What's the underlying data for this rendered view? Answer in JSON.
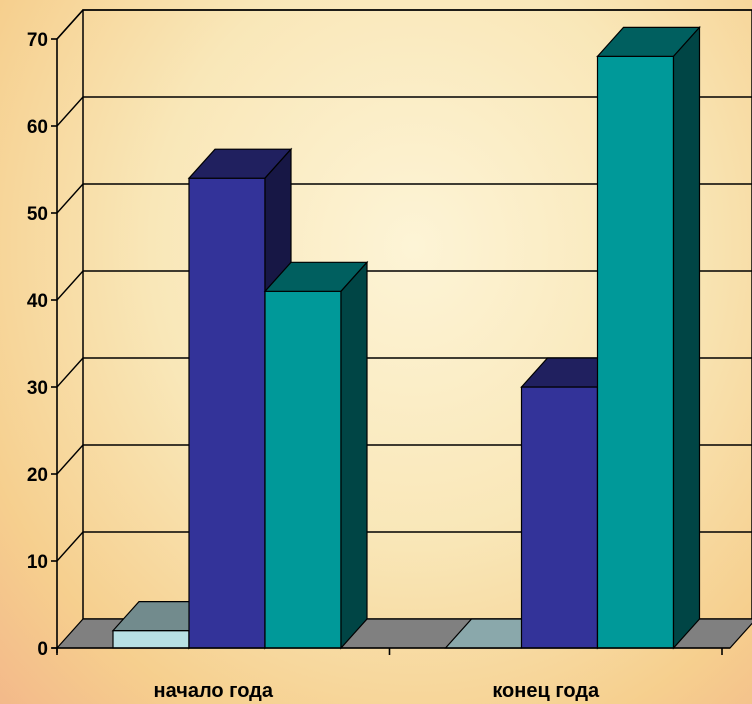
{
  "chart_data": {
    "type": "bar",
    "style": "3d-clustered-column",
    "categories": [
      "начало года",
      "конец года"
    ],
    "series": [
      {
        "values": [
          2,
          0
        ],
        "color": "#b8e0e4"
      },
      {
        "values": [
          54,
          30
        ],
        "color": "#333399"
      },
      {
        "values": [
          41,
          68
        ],
        "color": "#009999"
      }
    ],
    "ylim": [
      0,
      70
    ],
    "yticks": [
      0,
      10,
      20,
      30,
      40,
      50,
      60,
      70
    ],
    "grid": true,
    "legend": "none"
  }
}
